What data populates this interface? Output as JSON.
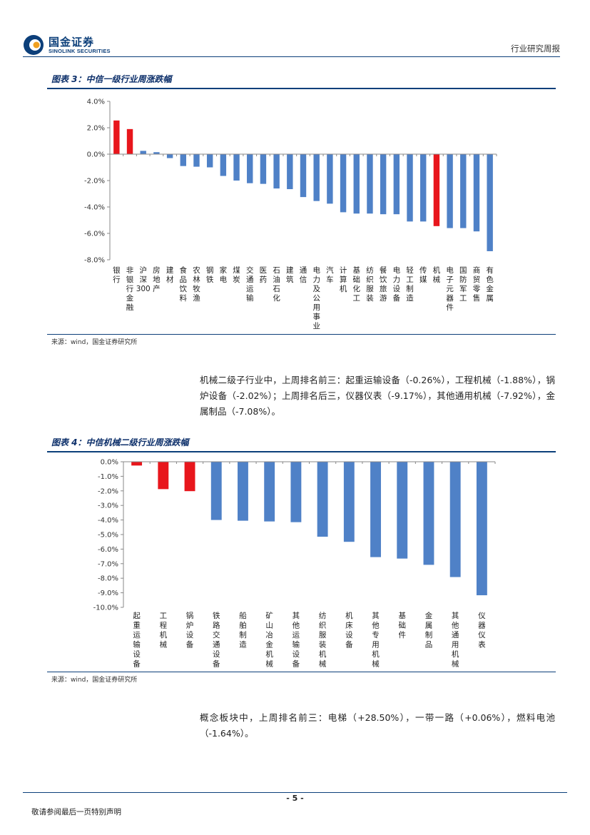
{
  "header": {
    "logo_cn": "国金证券",
    "logo_en": "SINOLINK SECURITIES",
    "report_type": "行业研究周报"
  },
  "colors": {
    "brand": "#0c3f7a",
    "bar_positive": "#e8161c",
    "bar_negative": "#4f81c7",
    "axis": "#888888"
  },
  "figure3": {
    "title": "图表 3：中信一级行业周涨跌幅",
    "source": "来源：wind，国金证券研究所"
  },
  "paragraph1": "机械二级子行业中，上周排名前三：起重运输设备（-0.26%），工程机械（-1.88%），锅炉设备（-2.02%）；上周排名后三，仪器仪表（-9.17%），其他通用机械（-7.92%），金属制品（-7.08%）。",
  "figure4": {
    "title": "图表 4：中信机械二级行业周涨跌幅",
    "source": "来源：wind，国金证券研究所"
  },
  "paragraph2": "概念板块中，上周排名前三：电梯（+28.50%），一带一路（+0.06%），燃料电池（-1.64%）。",
  "footer": {
    "page_number": "- 5 -",
    "disclaimer": "敬请参阅最后一页特别声明"
  },
  "chart_data": [
    {
      "type": "bar",
      "title": "图表 3：中信一级行业周涨跌幅",
      "ylim": [
        -8,
        4
      ],
      "yticks": [
        "4.0%",
        "2.0%",
        "0.0%",
        "-2.0%",
        "-4.0%",
        "-6.0%",
        "-8.0%"
      ],
      "categories": [
        "银行",
        "非银行金融",
        "沪深300",
        "房地产",
        "建材",
        "食品饮料",
        "农林牧渔",
        "钢铁",
        "家电",
        "煤炭",
        "交通运输",
        "医药",
        "石油石化",
        "建筑",
        "通信",
        "电力及公用事业",
        "汽车",
        "计算机",
        "基础化工",
        "纺织服装",
        "餐饮旅游",
        "电力设备",
        "轻工制造",
        "传媒",
        "机械",
        "电子元器件",
        "国防军工",
        "商贸零售",
        "有色金属"
      ],
      "values": [
        2.55,
        1.9,
        0.25,
        0.15,
        -0.3,
        -0.9,
        -0.95,
        -1.0,
        -1.65,
        -2.0,
        -2.2,
        -2.25,
        -2.6,
        -2.65,
        -3.25,
        -3.55,
        -3.75,
        -4.4,
        -4.5,
        -4.5,
        -4.55,
        -4.55,
        -5.1,
        -5.1,
        -5.45,
        -5.6,
        -5.6,
        -5.85,
        -7.35
      ],
      "highlight": [
        0,
        1,
        24
      ]
    },
    {
      "type": "bar",
      "title": "图表 4：中信机械二级行业周涨跌幅",
      "ylim": [
        -10,
        0
      ],
      "yticks": [
        "0.0%",
        "-1.0%",
        "-2.0%",
        "-3.0%",
        "-4.0%",
        "-5.0%",
        "-6.0%",
        "-7.0%",
        "-8.0%",
        "-9.0%",
        "-10.0%"
      ],
      "categories": [
        "起重运输设备",
        "工程机械",
        "锅炉设备",
        "铁路交通设备",
        "船舶制造",
        "矿山冶金机械",
        "其他运输设备",
        "纺织服装机械",
        "机床设备",
        "其他专用机械",
        "基础件",
        "金属制品",
        "其他通用机械",
        "仪器仪表"
      ],
      "values": [
        -0.26,
        -1.88,
        -2.02,
        -4.0,
        -4.05,
        -4.1,
        -4.15,
        -5.15,
        -5.5,
        -6.55,
        -6.65,
        -7.08,
        -7.92,
        -9.17
      ],
      "highlight": [
        0,
        1,
        2
      ]
    }
  ]
}
